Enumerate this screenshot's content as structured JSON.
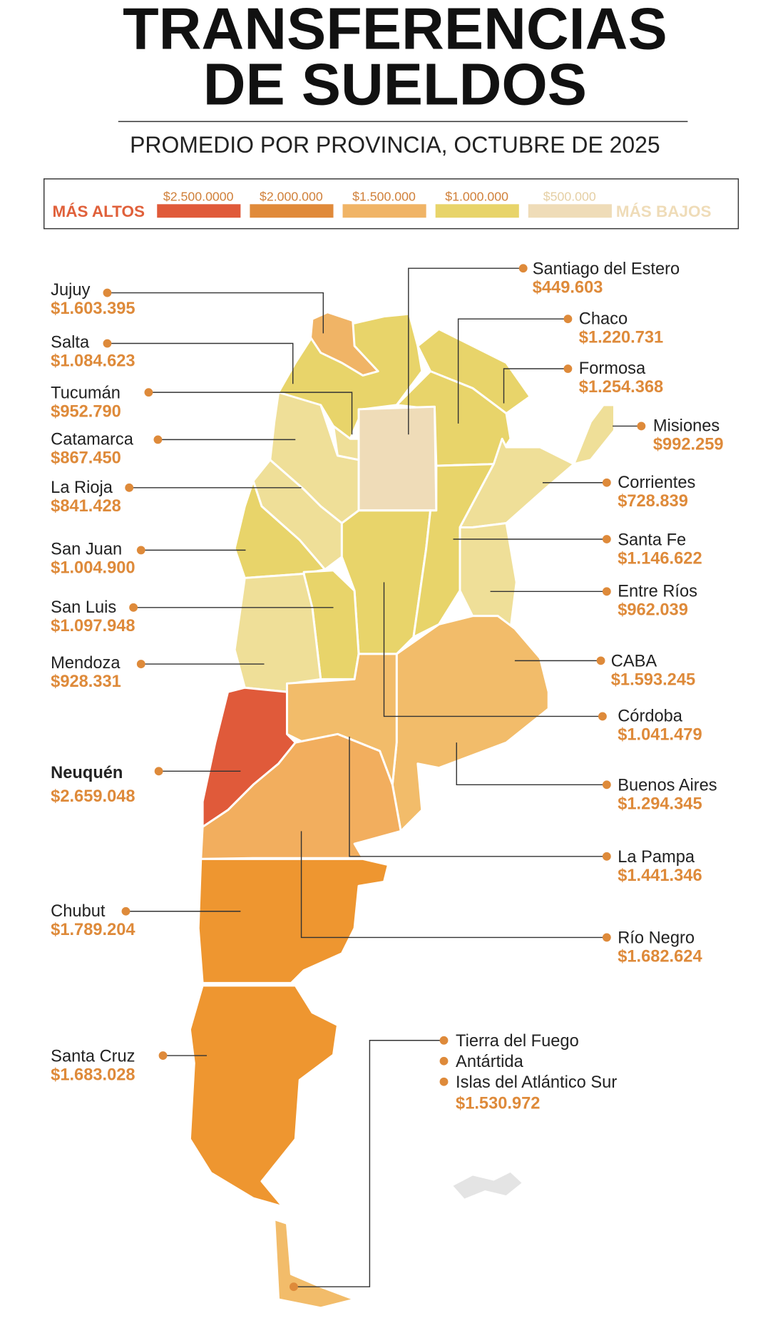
{
  "header": {
    "title_line1": "TRANSFERENCIAS",
    "title_line2": "DE SUELDOS",
    "subtitle": "PROMEDIO POR PROVINCIA, OCTUBRE DE 2025"
  },
  "legend": {
    "high_label": "MÁS ALTOS",
    "low_label": "MÁS BAJOS",
    "steps": [
      "$2.500.0000",
      "$2.000.000",
      "$1.500.000",
      "$1.000.000",
      "$500.000"
    ]
  },
  "provinces": [
    {
      "name": "Jujuy",
      "value": "$1.603.395"
    },
    {
      "name": "Salta",
      "value": "$1.084.623"
    },
    {
      "name": "Tucumán",
      "value": "$952.790"
    },
    {
      "name": "Catamarca",
      "value": "$867.450"
    },
    {
      "name": "La Rioja",
      "value": "$841.428"
    },
    {
      "name": "San Juan",
      "value": "$1.004.900"
    },
    {
      "name": "San Luis",
      "value": "$1.097.948"
    },
    {
      "name": "Mendoza",
      "value": "$928.331"
    },
    {
      "name": "Neuquén",
      "value": "$2.659.048"
    },
    {
      "name": "Chubut",
      "value": "$1.789.204"
    },
    {
      "name": "Santa Cruz",
      "value": "$1.683.028"
    },
    {
      "name": "Santiago del Estero",
      "value": "$449.603"
    },
    {
      "name": "Chaco",
      "value": "$1.220.731"
    },
    {
      "name": "Formosa",
      "value": "$1.254.368"
    },
    {
      "name": "Misiones",
      "value": "$992.259"
    },
    {
      "name": "Corrientes",
      "value": "$728.839"
    },
    {
      "name": "Santa Fe",
      "value": "$1.146.622"
    },
    {
      "name": "Entre Ríos",
      "value": "$962.039"
    },
    {
      "name": "CABA",
      "value": "$1.593.245"
    },
    {
      "name": "Córdoba",
      "value": "$1.041.479"
    },
    {
      "name": "Buenos Aires",
      "value": "$1.294.345"
    },
    {
      "name": "La Pampa",
      "value": "$1.441.346"
    },
    {
      "name": "Río Negro",
      "value": "$1.682.624"
    }
  ],
  "southern_group": {
    "names": [
      "Tierra del Fuego",
      "Antártida",
      "Islas del Atlántico Sur"
    ],
    "value": "$1.530.972"
  }
}
